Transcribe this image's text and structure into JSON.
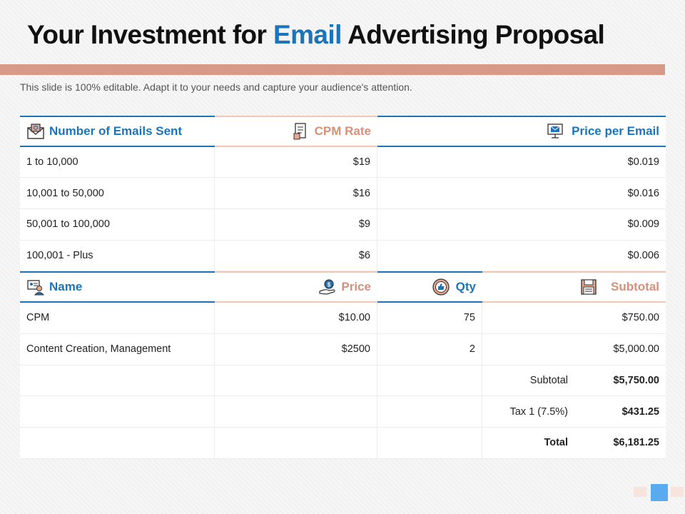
{
  "title": {
    "part1": "Your Investment for",
    "accent": "Email",
    "part2": "Advertising Proposal"
  },
  "subtitle": "This slide is 100% editable. Adapt it to your needs and capture your audience's attention.",
  "pricing": {
    "headers": {
      "emails": {
        "label": "Number of Emails Sent",
        "icon": "email-icon"
      },
      "cpm": {
        "label": "CPM Rate",
        "icon": "document-icon"
      },
      "price_per_email": {
        "label": "Price per Email",
        "icon": "monitor-email-icon"
      }
    },
    "rows": [
      {
        "range": "1 to 10,000",
        "cpm": "$19",
        "ppe": "$0.019"
      },
      {
        "range": "10,001 to 50,000",
        "cpm": "$16",
        "ppe": "$0.016"
      },
      {
        "range": "50,001 to 100,000",
        "cpm": "$9",
        "ppe": "$0.009"
      },
      {
        "range": "100,001 - Plus",
        "cpm": "$6",
        "ppe": "$0.006"
      }
    ]
  },
  "invoice": {
    "headers": {
      "name": {
        "label": "Name",
        "icon": "id-card-icon"
      },
      "price": {
        "label": "Price",
        "icon": "hand-coin-icon"
      },
      "qty": {
        "label": "Qty",
        "icon": "thumbs-up-badge-icon"
      },
      "subtotal": {
        "label": "Subtotal",
        "icon": "floppy-disk-icon"
      }
    },
    "rows": [
      {
        "name": "CPM",
        "price": "$10.00",
        "qty": "75",
        "subtotal": "$750.00"
      },
      {
        "name": "Content Creation, Management",
        "price": "$2500",
        "qty": "2",
        "subtotal": "$5,000.00"
      }
    ],
    "totals": [
      {
        "label": "Subtotal",
        "value": "$5,750.00"
      },
      {
        "label": "Tax 1 (7.5%)",
        "value": "$431.25"
      },
      {
        "label": "Total",
        "value": "$6,181.25"
      }
    ]
  },
  "colors": {
    "accent_blue": "#1d74b8",
    "accent_peach": "#d69a86"
  }
}
